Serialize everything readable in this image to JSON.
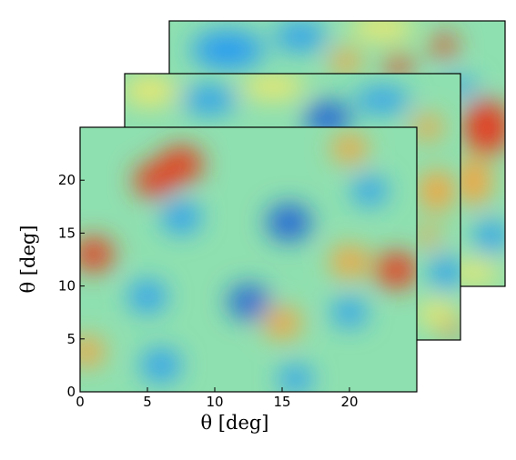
{
  "chart_data": {
    "type": "heatmap",
    "title": "",
    "panels": 3,
    "xlabel": "θ [deg]",
    "ylabel": "θ [deg]",
    "xlim": [
      0,
      25
    ],
    "ylim": [
      0,
      25
    ],
    "xticks": [
      "0",
      "5",
      "10",
      "15",
      "20"
    ],
    "yticks": [
      "0",
      "5",
      "10",
      "15",
      "20"
    ],
    "colormap": [
      "#1f5fd6",
      "#2a9df0",
      "#5fd3e8",
      "#8fe0b0",
      "#f0e86a",
      "#f7a23a",
      "#e43a1c"
    ],
    "front_map_features": [
      {
        "x": 7.5,
        "y": 21.5,
        "value": 1.0
      },
      {
        "x": 5.5,
        "y": 20.0,
        "value": 0.85
      },
      {
        "x": 1.0,
        "y": 13.0,
        "value": 0.85
      },
      {
        "x": 23.5,
        "y": 11.5,
        "value": 0.95
      },
      {
        "x": 20.0,
        "y": 12.3,
        "value": 0.75
      },
      {
        "x": 15.0,
        "y": 6.5,
        "value": 0.7
      },
      {
        "x": 20.0,
        "y": 23.0,
        "value": 0.6
      },
      {
        "x": 0.5,
        "y": 3.8,
        "value": 0.6
      },
      {
        "x": 15.5,
        "y": 16.0,
        "value": -1.0
      },
      {
        "x": 12.5,
        "y": 8.5,
        "value": -0.85
      },
      {
        "x": 7.5,
        "y": 16.5,
        "value": -0.8
      },
      {
        "x": 6.0,
        "y": 2.5,
        "value": -0.8
      },
      {
        "x": 5.0,
        "y": 9.0,
        "value": -0.75
      },
      {
        "x": 20.0,
        "y": 7.5,
        "value": -0.6
      },
      {
        "x": 21.5,
        "y": 19.0,
        "value": -0.6
      },
      {
        "x": 16.0,
        "y": 1.2,
        "value": -0.55
      }
    ]
  }
}
